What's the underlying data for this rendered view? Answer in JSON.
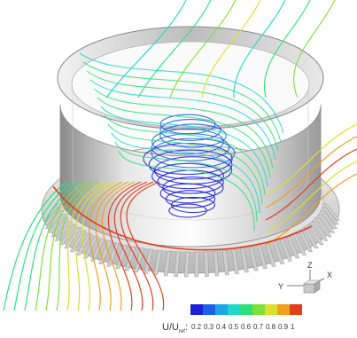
{
  "figure": {
    "description_free": true
  },
  "colorbar": {
    "label_main": "U/U",
    "label_sub": "ref",
    "label_suffix": ":",
    "ticks": [
      "0.2",
      "0.3",
      "0.4",
      "0.5",
      "0.6",
      "0.7",
      "0.8",
      "0.9",
      "1"
    ],
    "colors": [
      "#1b1fd6",
      "#1e5fe6",
      "#1ea6e8",
      "#1ed8c8",
      "#2ee07a",
      "#7ee03a",
      "#d9e02e",
      "#f0a020",
      "#e0401e"
    ]
  },
  "axes_triad": {
    "x_label": "X",
    "y_label": "Y",
    "z_label": "Z"
  }
}
